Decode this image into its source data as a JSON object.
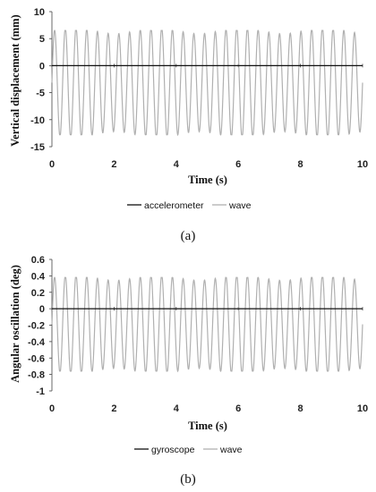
{
  "chart_data": [
    {
      "type": "line",
      "xlabel": "Time (s)",
      "ylabel": "Vertical displacement (mm)",
      "xlim": [
        0,
        10
      ],
      "ylim": [
        -15,
        10
      ],
      "x_ticks": [
        "0",
        "2",
        "4",
        "6",
        "8",
        "10"
      ],
      "y_ticks": [
        "10",
        "5",
        "0",
        "-5",
        "-10",
        "-15"
      ],
      "caption": "(a)",
      "grid": false,
      "legend_position": "bottom",
      "series": [
        {
          "name": "accelerometer",
          "color": "#111111",
          "x": [
            0,
            10
          ],
          "y": [
            0,
            0
          ]
        },
        {
          "name": "wave",
          "color": "#b0b0b0",
          "frequency_hz": 2.9,
          "peak": 6.5,
          "trough": -12.8
        }
      ]
    },
    {
      "type": "line",
      "xlabel": "Time (s)",
      "ylabel": "Angular oscillation (deg)",
      "xlim": [
        0,
        10
      ],
      "ylim": [
        -1,
        0.6
      ],
      "x_ticks": [
        "0",
        "2",
        "4",
        "6",
        "8",
        "10"
      ],
      "y_ticks": [
        "0.6",
        "0.4",
        "0.2",
        "0",
        "-0.2",
        "-0.4",
        "-0.6",
        "-0.8",
        "-1"
      ],
      "caption": "(b)",
      "grid": false,
      "legend_position": "bottom",
      "series": [
        {
          "name": "gyroscope",
          "color": "#111111",
          "x": [
            0,
            10
          ],
          "y": [
            0,
            0
          ]
        },
        {
          "name": "wave",
          "color": "#b0b0b0",
          "frequency_hz": 2.9,
          "peak": 0.38,
          "trough": -0.76
        }
      ]
    }
  ]
}
